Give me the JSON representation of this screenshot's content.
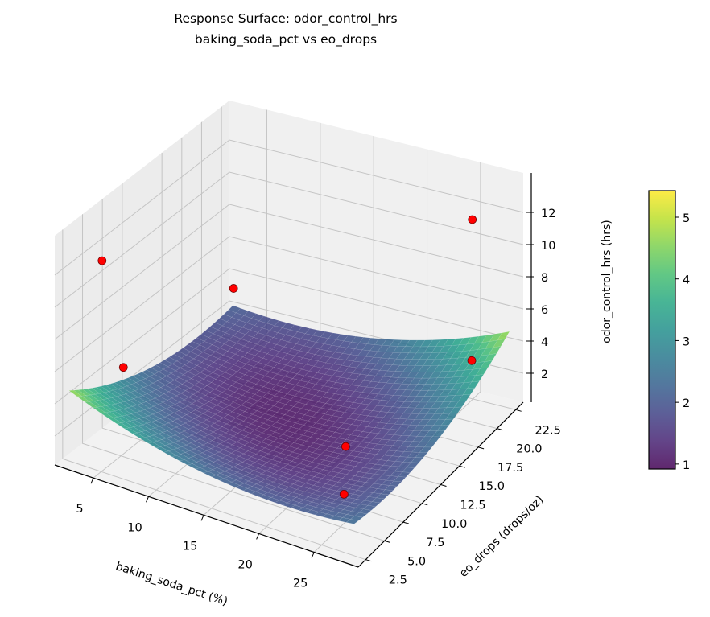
{
  "chart_data": {
    "type": "surface3d",
    "title": "Response Surface: odor_control_hrs",
    "subtitle": "baking_soda_pct vs eo_drops",
    "xlabel": "baking_soda_pct (%)",
    "ylabel": "eo_drops (drops/oz)",
    "zlabel": "odor_control_hrs (hrs)",
    "xlim": [
      1.5,
      29
    ],
    "ylim": [
      1.5,
      23.5
    ],
    "zlim": [
      0.2,
      14.45
    ],
    "x_ticks": [
      "5",
      "10",
      "15",
      "20",
      "25"
    ],
    "y_ticks": [
      "2.5",
      "5.0",
      "7.5",
      "10.0",
      "12.5",
      "15.0",
      "17.5",
      "20.0",
      "22.5"
    ],
    "z_ticks": [
      "2",
      "4",
      "6",
      "8",
      "10",
      "12"
    ],
    "grid": true,
    "colormap": "viridis",
    "surface_alpha": 0.85,
    "surface_model": {
      "form": "quadratic",
      "min_value": 1.0,
      "corner_values": {
        "low_x_low_y": 5.5,
        "high_x_high_y": 5.5,
        "low_x_high_y": 2.3,
        "high_x_low_y": 3.0
      }
    },
    "points": [
      {
        "x": 4,
        "y": 4,
        "z": 12.5
      },
      {
        "x": 4.5,
        "y": 6,
        "z": 5.2
      },
      {
        "x": 3,
        "y": 22,
        "z": 3.6
      },
      {
        "x": 26,
        "y": 21,
        "z": 12.2
      },
      {
        "x": 27,
        "y": 19.5,
        "z": 4.3
      },
      {
        "x": 22,
        "y": 10,
        "z": 2.3
      },
      {
        "x": 26,
        "y": 4,
        "z": 2.9
      }
    ],
    "point_color": "#ff0000",
    "colorbar": {
      "range": [
        0.92,
        5.43
      ],
      "ticks": [
        "1",
        "2",
        "3",
        "4",
        "5"
      ]
    }
  }
}
